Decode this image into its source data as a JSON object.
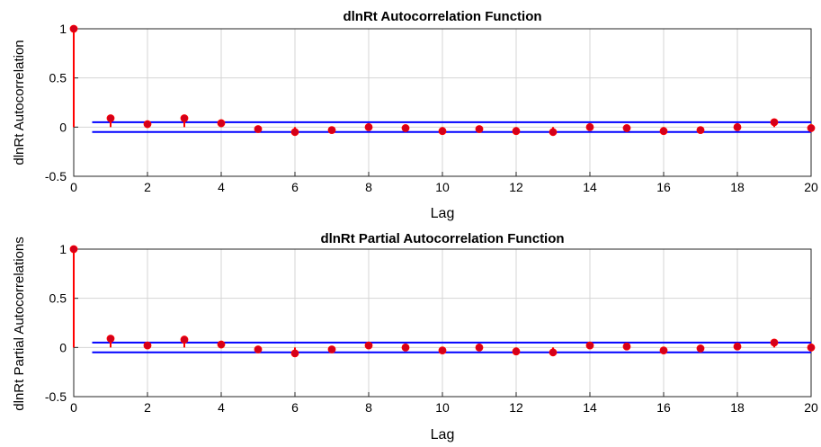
{
  "chart_data": [
    {
      "type": "stem",
      "title": "dlnRt Autocorrelation Function",
      "xlabel": "Lag",
      "ylabel": "dlnRt  Autocorrelation",
      "xlim": [
        0,
        20
      ],
      "ylim": [
        -0.5,
        1
      ],
      "xticks": [
        "0",
        "2",
        "4",
        "6",
        "8",
        "10",
        "12",
        "14",
        "16",
        "18",
        "20"
      ],
      "yticks": [
        "-0.5",
        "0",
        "0.5",
        "1"
      ],
      "grid": true,
      "confidence_bounds": [
        0.05,
        -0.05
      ],
      "colors": {
        "stem": "#ff0000",
        "marker": "#d4001a",
        "bounds": "#0000ff"
      },
      "x": [
        0,
        1,
        2,
        3,
        4,
        5,
        6,
        7,
        8,
        9,
        10,
        11,
        12,
        13,
        14,
        15,
        16,
        17,
        18,
        19,
        20
      ],
      "values": [
        1.0,
        0.09,
        0.03,
        0.09,
        0.04,
        -0.02,
        -0.05,
        -0.03,
        0.0,
        -0.01,
        -0.04,
        -0.02,
        -0.04,
        -0.05,
        0.0,
        -0.01,
        -0.04,
        -0.03,
        0.0,
        0.05,
        -0.01
      ]
    },
    {
      "type": "stem",
      "title": "dlnRt Partial Autocorrelation Function",
      "xlabel": "Lag",
      "ylabel": "dlnRt Partial Autocorrelations",
      "xlim": [
        0,
        20
      ],
      "ylim": [
        -0.5,
        1
      ],
      "xticks": [
        "0",
        "2",
        "4",
        "6",
        "8",
        "10",
        "12",
        "14",
        "16",
        "18",
        "20"
      ],
      "yticks": [
        "-0.5",
        "0",
        "0.5",
        "1"
      ],
      "grid": true,
      "confidence_bounds": [
        0.05,
        -0.05
      ],
      "colors": {
        "stem": "#ff0000",
        "marker": "#d4001a",
        "bounds": "#0000ff"
      },
      "x": [
        0,
        1,
        2,
        3,
        4,
        5,
        6,
        7,
        8,
        9,
        10,
        11,
        12,
        13,
        14,
        15,
        16,
        17,
        18,
        19,
        20
      ],
      "values": [
        1.0,
        0.09,
        0.02,
        0.08,
        0.03,
        -0.02,
        -0.06,
        -0.02,
        0.02,
        0.0,
        -0.03,
        0.0,
        -0.04,
        -0.05,
        0.02,
        0.01,
        -0.03,
        -0.01,
        0.01,
        0.05,
        0.0
      ]
    }
  ]
}
